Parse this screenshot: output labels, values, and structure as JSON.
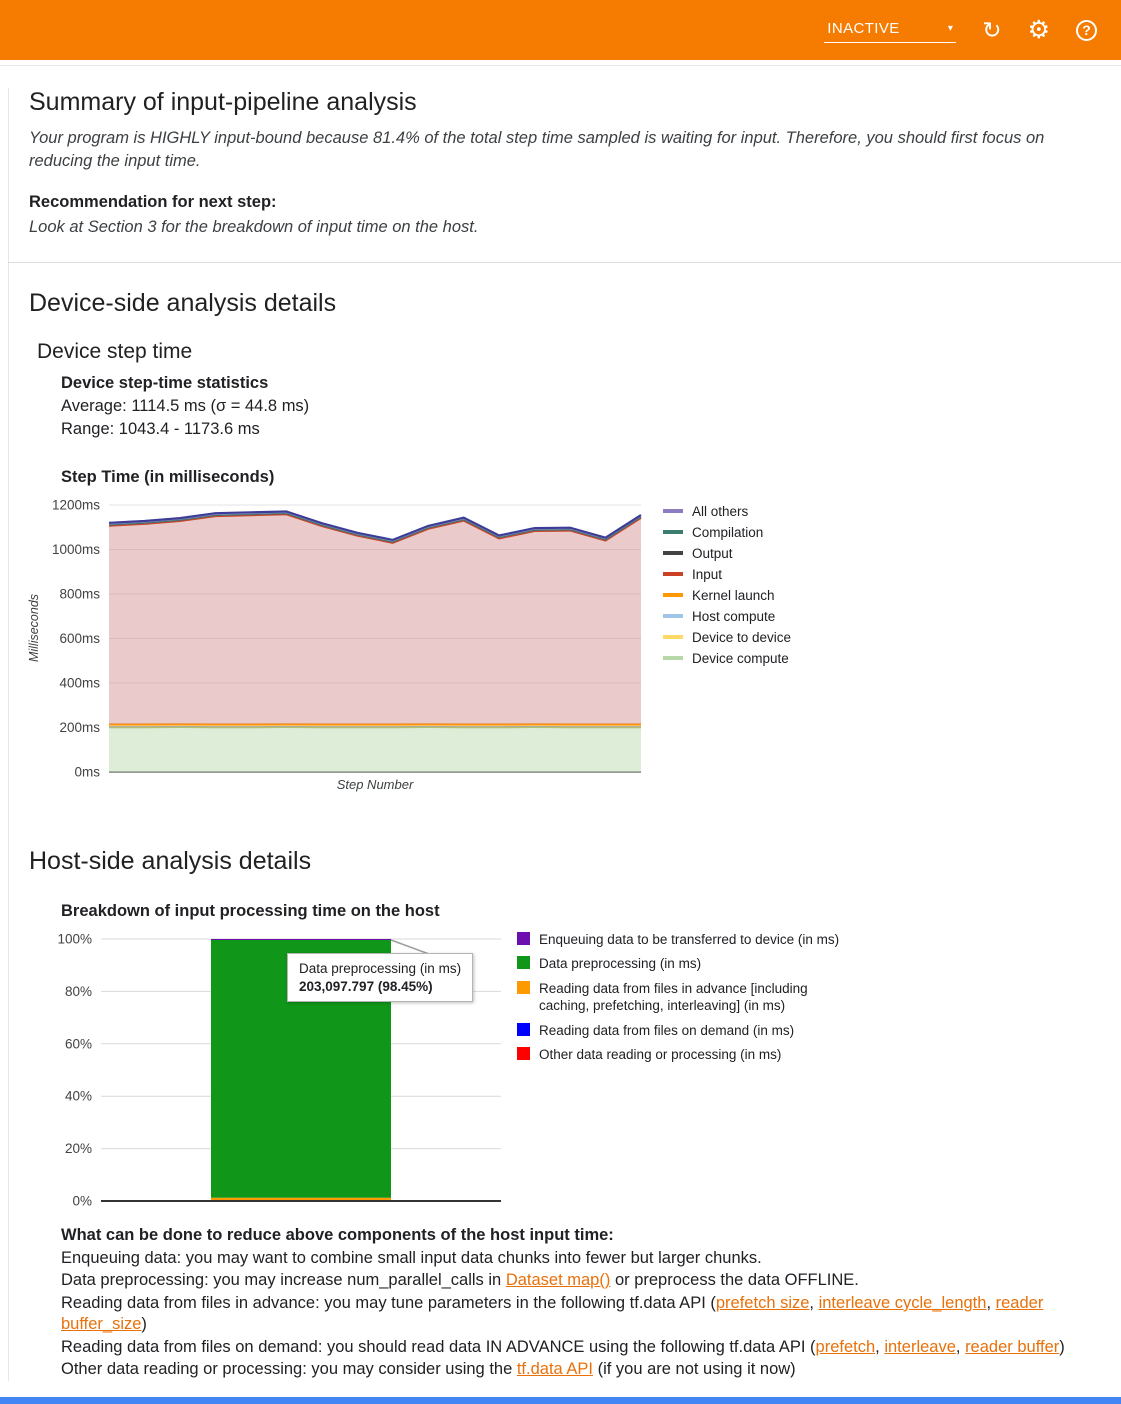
{
  "header": {
    "status": "INACTIVE",
    "caret": "▾",
    "refresh_glyph": "↻",
    "settings_glyph": "⚙",
    "help_glyph": "?"
  },
  "summary": {
    "title": "Summary of input-pipeline analysis",
    "body": "Your program is HIGHLY input-bound because 81.4% of the total step time sampled is waiting for input. Therefore, you should first focus on reducing the input time.",
    "recommendation_label": "Recommendation for next step:",
    "recommendation": "Look at Section 3 for the breakdown of input time on the host."
  },
  "device_section": {
    "title": "Device-side analysis details",
    "subtitle": "Device step time",
    "stats_title": "Device step-time statistics",
    "average": "Average: 1114.5 ms (σ = 44.8 ms)",
    "range": "Range: 1043.4 - 1173.6 ms"
  },
  "host_section": {
    "title": "Host-side analysis details"
  },
  "advice": {
    "title": "What can be done to reduce above components of the host input time:",
    "lines": [
      [
        {
          "t": "Enqueuing data: you may want to combine small input data chunks into fewer but larger chunks."
        }
      ],
      [
        {
          "t": "Data preprocessing: you may increase num_parallel_calls in "
        },
        {
          "t": "Dataset map()",
          "link": true
        },
        {
          "t": " or preprocess the data OFFLINE."
        }
      ],
      [
        {
          "t": "Reading data from files in advance: you may tune parameters in the following tf.data API ("
        },
        {
          "t": "prefetch size",
          "link": true
        },
        {
          "t": ", "
        },
        {
          "t": "interleave cycle_length",
          "link": true
        },
        {
          "t": ", "
        },
        {
          "t": "reader buffer_size",
          "link": true
        },
        {
          "t": ")"
        }
      ],
      [
        {
          "t": "Reading data from files on demand: you should read data IN ADVANCE using the following tf.data API ("
        },
        {
          "t": "prefetch",
          "link": true
        },
        {
          "t": ", "
        },
        {
          "t": "interleave",
          "link": true
        },
        {
          "t": ", "
        },
        {
          "t": "reader buffer",
          "link": true
        },
        {
          "t": ")"
        }
      ],
      [
        {
          "t": "Other data reading or processing: you may consider using the "
        },
        {
          "t": "tf.data API",
          "link": true
        },
        {
          "t": " (if you are not using it now)"
        }
      ]
    ]
  },
  "chart_data": [
    {
      "type": "area",
      "title": "Step Time (in milliseconds)",
      "xlabel": "Step Number",
      "ylabel": "Milliseconds",
      "ylim": [
        0,
        1200
      ],
      "grid": true,
      "legend_position": "right",
      "y_ticks": [
        {
          "v": 0,
          "label": "0ms"
        },
        {
          "v": 200,
          "label": "200ms"
        },
        {
          "v": 400,
          "label": "400ms"
        },
        {
          "v": 600,
          "label": "600ms"
        },
        {
          "v": 800,
          "label": "800ms"
        },
        {
          "v": 1000,
          "label": "1000ms"
        },
        {
          "v": 1200,
          "label": "1200ms"
        }
      ],
      "series": [
        {
          "key": "device-compute",
          "name": "Device compute",
          "color": "#93b873",
          "fill": "#b6d7a8",
          "fill_opacity": 0.45,
          "line_width": 1.5,
          "values": [
            200,
            200,
            201,
            200,
            200,
            201,
            200,
            200,
            200,
            201,
            200,
            200,
            201,
            200,
            200,
            200
          ]
        },
        {
          "key": "device-to-device",
          "name": "Device to device",
          "color": "#e3c84b",
          "fill": "#ffe599",
          "fill_opacity": 0.7,
          "line_width": 1,
          "values": [
            2,
            2,
            2,
            2,
            2,
            2,
            2,
            2,
            2,
            2,
            2,
            2,
            2,
            2,
            2,
            2
          ]
        },
        {
          "key": "host-compute",
          "name": "Host compute",
          "color": "#6fa8dc",
          "fill": "#9fc5e8",
          "fill_opacity": 0.7,
          "line_width": 1,
          "values": [
            2,
            2,
            2,
            2,
            2,
            2,
            2,
            2,
            2,
            2,
            2,
            2,
            2,
            2,
            2,
            2
          ]
        },
        {
          "key": "kernel-launch",
          "name": "Kernel launch",
          "color": "#ff9900",
          "fill": "#ffb85c",
          "fill_opacity": 0.75,
          "line_width": 2,
          "values": [
            10,
            10,
            10,
            10,
            10,
            10,
            10,
            10,
            10,
            10,
            10,
            10,
            10,
            10,
            10,
            10
          ]
        },
        {
          "key": "input",
          "name": "Input",
          "color": "#cc4125",
          "fill": "#cc8080",
          "fill_opacity": 0.42,
          "line_width": 2,
          "values": [
            893,
            901,
            913,
            936,
            940,
            943,
            891,
            848,
            816,
            878,
            916,
            836,
            868,
            871,
            826,
            928
          ]
        },
        {
          "key": "output",
          "name": "Output",
          "color": "#555555",
          "fill": "#999999",
          "fill_opacity": 0.6,
          "line_width": 1,
          "values": [
            3,
            3,
            3,
            3,
            3,
            3,
            3,
            3,
            3,
            3,
            3,
            3,
            3,
            3,
            3,
            3
          ]
        },
        {
          "key": "compilation",
          "name": "Compilation",
          "color": "#3c7d70",
          "fill": "#76a5af",
          "fill_opacity": 0.6,
          "line_width": 1,
          "values": [
            2,
            2,
            2,
            2,
            2,
            2,
            2,
            2,
            2,
            2,
            2,
            2,
            2,
            2,
            2,
            2
          ]
        },
        {
          "key": "all-others",
          "name": "All others",
          "color": "#3d3d99",
          "fill": "#8e7cc3",
          "fill_opacity": 0.6,
          "line_width": 2.2,
          "values": [
            8,
            8,
            8,
            8,
            8,
            8,
            8,
            8,
            8,
            8,
            8,
            8,
            8,
            8,
            8,
            8
          ]
        }
      ],
      "legend": [
        {
          "label": "All others",
          "color": "#8e7cc3"
        },
        {
          "label": "Compilation",
          "color": "#3c7d70"
        },
        {
          "label": "Output",
          "color": "#434343"
        },
        {
          "label": "Input",
          "color": "#cc4125"
        },
        {
          "label": "Kernel launch",
          "color": "#ff9900"
        },
        {
          "label": "Host compute",
          "color": "#9fc5e8"
        },
        {
          "label": "Device to device",
          "color": "#ffd966"
        },
        {
          "label": "Device compute",
          "color": "#b6d7a8"
        }
      ]
    },
    {
      "type": "bar",
      "title": "Breakdown of input processing time on the host",
      "ylim": [
        0,
        100
      ],
      "grid": true,
      "legend_position": "right",
      "y_ticks": [
        {
          "v": 0,
          "label": "0%"
        },
        {
          "v": 20,
          "label": "20%"
        },
        {
          "v": 40,
          "label": "40%"
        },
        {
          "v": 60,
          "label": "60%"
        },
        {
          "v": 80,
          "label": "80%"
        },
        {
          "v": 100,
          "label": "100%"
        }
      ],
      "segments": [
        {
          "name": "Other data reading or processing (in ms)",
          "value": 0.05,
          "color": "#ff0000"
        },
        {
          "name": "Reading data from files on demand (in ms)",
          "value": 0.1,
          "color": "#0000ff"
        },
        {
          "name": "Reading data from files in advance [including caching, prefetching, interleaving] (in ms)",
          "value": 1.1,
          "color": "#ff9900"
        },
        {
          "name": "Data preprocessing (in ms)",
          "value": 98.45,
          "color": "#109618"
        },
        {
          "name": "Enqueuing data to be transferred to device (in ms)",
          "value": 0.3,
          "color": "#6d0fae"
        }
      ],
      "legend": [
        {
          "label": "Enqueuing data to be transferred to device (in ms)",
          "color": "#6d0fae"
        },
        {
          "label": "Data preprocessing (in ms)",
          "color": "#109618"
        },
        {
          "label": "Reading data from files in advance [including caching, prefetching, interleaving] (in ms)",
          "color": "#ff9900"
        },
        {
          "label": "Reading data from files on demand (in ms)",
          "color": "#0000ff"
        },
        {
          "label": "Other data reading or processing (in ms)",
          "color": "#ff0000"
        }
      ],
      "tooltip": {
        "line1": "Data preprocessing (in ms)",
        "line2": "203,097.797 (98.45%)"
      }
    }
  ]
}
